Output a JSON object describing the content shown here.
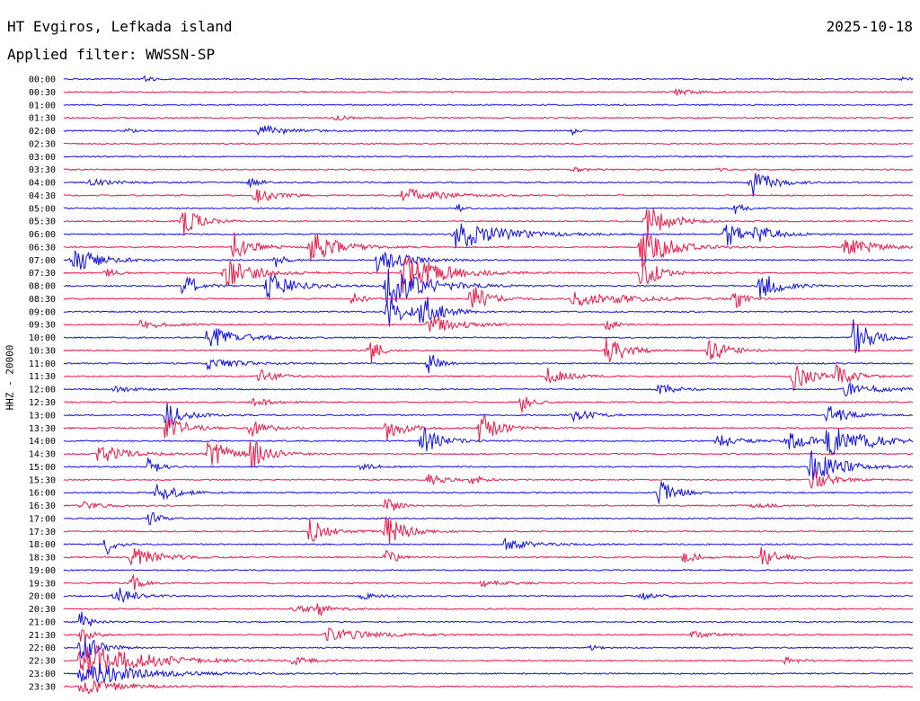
{
  "header": {
    "station": "HT Evgiros, Lefkada island",
    "date": "2025-10-18",
    "filter": "Applied filter: WWSSN-SP",
    "channel": "HHZ - 20000"
  },
  "chart_data": {
    "type": "line",
    "variant": "helicorder",
    "title": "HT Evgiros, Lefkada island",
    "subtitle": "Applied filter: WWSSN-SP",
    "ylabel": "HHZ - 20000",
    "date": "2025-10-18",
    "trace_colors": [
      "#1010e8",
      "#f01848"
    ],
    "grid": false,
    "rows": [
      {
        "label": "00:00",
        "events": [
          {
            "t": 0.095,
            "amp": 0.25,
            "dur": 0.01
          },
          {
            "t": 0.985,
            "amp": 0.2,
            "dur": 0.01
          }
        ]
      },
      {
        "label": "00:30",
        "events": [
          {
            "t": 0.72,
            "amp": 0.3,
            "dur": 0.025
          }
        ]
      },
      {
        "label": "01:00",
        "events": []
      },
      {
        "label": "01:30",
        "events": [
          {
            "t": 0.32,
            "amp": 0.25,
            "dur": 0.015
          }
        ]
      },
      {
        "label": "02:00",
        "events": [
          {
            "t": 0.075,
            "amp": 0.2,
            "dur": 0.01
          },
          {
            "t": 0.23,
            "amp": 0.55,
            "dur": 0.03
          },
          {
            "t": 0.6,
            "amp": 0.4,
            "dur": 0.005
          }
        ]
      },
      {
        "label": "02:30",
        "events": []
      },
      {
        "label": "03:00",
        "events": []
      },
      {
        "label": "03:30",
        "events": [
          {
            "t": 0.6,
            "amp": 0.2,
            "dur": 0.02
          },
          {
            "t": 0.77,
            "amp": 0.15,
            "dur": 0.01
          }
        ]
      },
      {
        "label": "04:00",
        "events": [
          {
            "t": 0.03,
            "amp": 0.3,
            "dur": 0.03
          },
          {
            "t": 0.22,
            "amp": 0.6,
            "dur": 0.01
          },
          {
            "t": 0.81,
            "amp": 1.6,
            "dur": 0.02
          }
        ]
      },
      {
        "label": "04:30",
        "events": [
          {
            "t": 0.225,
            "amp": 0.9,
            "dur": 0.02
          },
          {
            "t": 0.4,
            "amp": 0.7,
            "dur": 0.04
          }
        ]
      },
      {
        "label": "05:00",
        "events": [
          {
            "t": 0.465,
            "amp": 0.4,
            "dur": 0.005
          },
          {
            "t": 0.79,
            "amp": 0.6,
            "dur": 0.01
          }
        ]
      },
      {
        "label": "05:30",
        "events": [
          {
            "t": 0.14,
            "amp": 1.4,
            "dur": 0.02
          },
          {
            "t": 0.685,
            "amp": 1.8,
            "dur": 0.025
          }
        ]
      },
      {
        "label": "06:00",
        "events": [
          {
            "t": 0.46,
            "amp": 1.5,
            "dur": 0.05
          },
          {
            "t": 0.78,
            "amp": 1.2,
            "dur": 0.02
          },
          {
            "t": 0.815,
            "amp": 1.0,
            "dur": 0.02
          }
        ]
      },
      {
        "label": "06:30",
        "events": [
          {
            "t": 0.2,
            "amp": 1.4,
            "dur": 0.02
          },
          {
            "t": 0.29,
            "amp": 1.5,
            "dur": 0.03
          },
          {
            "t": 0.68,
            "amp": 2.0,
            "dur": 0.03
          },
          {
            "t": 0.92,
            "amp": 1.0,
            "dur": 0.03
          }
        ]
      },
      {
        "label": "07:00",
        "events": [
          {
            "t": 0.01,
            "amp": 1.2,
            "dur": 0.03
          },
          {
            "t": 0.37,
            "amp": 1.3,
            "dur": 0.03
          },
          {
            "t": 0.25,
            "amp": 0.6,
            "dur": 0.01
          }
        ]
      },
      {
        "label": "07:30",
        "events": [
          {
            "t": 0.05,
            "amp": 0.6,
            "dur": 0.01
          },
          {
            "t": 0.19,
            "amp": 1.6,
            "dur": 0.03
          },
          {
            "t": 0.4,
            "amp": 2.2,
            "dur": 0.04
          },
          {
            "t": 0.68,
            "amp": 1.5,
            "dur": 0.02
          }
        ]
      },
      {
        "label": "08:00",
        "events": [
          {
            "t": 0.14,
            "amp": 1.4,
            "dur": 0.015
          },
          {
            "t": 0.24,
            "amp": 1.2,
            "dur": 0.03
          },
          {
            "t": 0.38,
            "amp": 2.0,
            "dur": 0.04
          },
          {
            "t": 0.82,
            "amp": 1.6,
            "dur": 0.02
          }
        ]
      },
      {
        "label": "08:30",
        "events": [
          {
            "t": 0.34,
            "amp": 0.8,
            "dur": 0.01
          },
          {
            "t": 0.48,
            "amp": 1.4,
            "dur": 0.02
          },
          {
            "t": 0.6,
            "amp": 0.7,
            "dur": 0.06
          },
          {
            "t": 0.79,
            "amp": 1.2,
            "dur": 0.01
          }
        ]
      },
      {
        "label": "09:00",
        "events": [
          {
            "t": 0.38,
            "amp": 1.6,
            "dur": 0.02
          },
          {
            "t": 0.42,
            "amp": 1.8,
            "dur": 0.02
          }
        ]
      },
      {
        "label": "09:30",
        "events": [
          {
            "t": 0.09,
            "amp": 0.4,
            "dur": 0.03
          },
          {
            "t": 0.43,
            "amp": 1.0,
            "dur": 0.03
          },
          {
            "t": 0.64,
            "amp": 0.6,
            "dur": 0.01
          }
        ]
      },
      {
        "label": "10:00",
        "events": [
          {
            "t": 0.17,
            "amp": 1.2,
            "dur": 0.03
          },
          {
            "t": 0.93,
            "amp": 1.8,
            "dur": 0.02
          }
        ]
      },
      {
        "label": "10:30",
        "events": [
          {
            "t": 0.36,
            "amp": 1.6,
            "dur": 0.01
          },
          {
            "t": 0.64,
            "amp": 1.6,
            "dur": 0.02
          },
          {
            "t": 0.76,
            "amp": 1.3,
            "dur": 0.02
          }
        ]
      },
      {
        "label": "11:00",
        "events": [
          {
            "t": 0.17,
            "amp": 0.6,
            "dur": 0.03
          },
          {
            "t": 0.43,
            "amp": 1.2,
            "dur": 0.01
          }
        ]
      },
      {
        "label": "11:30",
        "events": [
          {
            "t": 0.23,
            "amp": 0.7,
            "dur": 0.02
          },
          {
            "t": 0.57,
            "amp": 0.9,
            "dur": 0.02
          },
          {
            "t": 0.86,
            "amp": 1.4,
            "dur": 0.02
          },
          {
            "t": 0.91,
            "amp": 0.9,
            "dur": 0.02
          }
        ]
      },
      {
        "label": "12:00",
        "events": [
          {
            "t": 0.06,
            "amp": 0.3,
            "dur": 0.02
          },
          {
            "t": 0.7,
            "amp": 0.6,
            "dur": 0.02
          },
          {
            "t": 0.92,
            "amp": 0.6,
            "dur": 0.04
          }
        ]
      },
      {
        "label": "12:30",
        "events": [
          {
            "t": 0.22,
            "amp": 0.5,
            "dur": 0.02
          },
          {
            "t": 0.54,
            "amp": 1.0,
            "dur": 0.01
          }
        ]
      },
      {
        "label": "13:00",
        "events": [
          {
            "t": 0.12,
            "amp": 1.3,
            "dur": 0.02
          },
          {
            "t": 0.6,
            "amp": 0.6,
            "dur": 0.02
          },
          {
            "t": 0.9,
            "amp": 1.0,
            "dur": 0.02
          }
        ]
      },
      {
        "label": "13:30",
        "events": [
          {
            "t": 0.12,
            "amp": 1.5,
            "dur": 0.02
          },
          {
            "t": 0.22,
            "amp": 0.8,
            "dur": 0.02
          },
          {
            "t": 0.38,
            "amp": 1.2,
            "dur": 0.02
          },
          {
            "t": 0.49,
            "amp": 1.7,
            "dur": 0.02
          }
        ]
      },
      {
        "label": "14:00",
        "events": [
          {
            "t": 0.42,
            "amp": 1.5,
            "dur": 0.02
          },
          {
            "t": 0.77,
            "amp": 0.8,
            "dur": 0.02
          },
          {
            "t": 0.85,
            "amp": 0.9,
            "dur": 0.03
          },
          {
            "t": 0.9,
            "amp": 1.8,
            "dur": 0.02
          },
          {
            "t": 0.94,
            "amp": 0.6,
            "dur": 0.03
          }
        ]
      },
      {
        "label": "14:30",
        "events": [
          {
            "t": 0.04,
            "amp": 0.9,
            "dur": 0.03
          },
          {
            "t": 0.17,
            "amp": 1.6,
            "dur": 0.02
          },
          {
            "t": 0.22,
            "amp": 1.4,
            "dur": 0.02
          }
        ]
      },
      {
        "label": "15:00",
        "events": [
          {
            "t": 0.1,
            "amp": 1.2,
            "dur": 0.01
          },
          {
            "t": 0.35,
            "amp": 0.3,
            "dur": 0.02
          },
          {
            "t": 0.88,
            "amp": 1.8,
            "dur": 0.03
          }
        ]
      },
      {
        "label": "15:30",
        "events": [
          {
            "t": 0.43,
            "amp": 0.5,
            "dur": 0.02
          },
          {
            "t": 0.48,
            "amp": 0.5,
            "dur": 0.01
          },
          {
            "t": 0.88,
            "amp": 1.2,
            "dur": 0.02
          }
        ]
      },
      {
        "label": "16:00",
        "events": [
          {
            "t": 0.11,
            "amp": 1.0,
            "dur": 0.02
          },
          {
            "t": 0.7,
            "amp": 1.2,
            "dur": 0.02
          }
        ]
      },
      {
        "label": "16:30",
        "events": [
          {
            "t": 0.02,
            "amp": 0.4,
            "dur": 0.02
          },
          {
            "t": 0.38,
            "amp": 1.0,
            "dur": 0.01
          },
          {
            "t": 0.81,
            "amp": 0.2,
            "dur": 0.03
          }
        ]
      },
      {
        "label": "17:00",
        "events": [
          {
            "t": 0.1,
            "amp": 1.0,
            "dur": 0.01
          }
        ]
      },
      {
        "label": "17:30",
        "events": [
          {
            "t": 0.29,
            "amp": 1.2,
            "dur": 0.02
          },
          {
            "t": 0.38,
            "amp": 1.5,
            "dur": 0.02
          }
        ]
      },
      {
        "label": "18:00",
        "events": [
          {
            "t": 0.05,
            "amp": 1.0,
            "dur": 0.01
          },
          {
            "t": 0.52,
            "amp": 0.5,
            "dur": 0.03
          }
        ]
      },
      {
        "label": "18:30",
        "events": [
          {
            "t": 0.08,
            "amp": 1.0,
            "dur": 0.03
          },
          {
            "t": 0.38,
            "amp": 1.0,
            "dur": 0.01
          },
          {
            "t": 0.73,
            "amp": 0.5,
            "dur": 0.02
          },
          {
            "t": 0.82,
            "amp": 1.0,
            "dur": 0.02
          }
        ]
      },
      {
        "label": "19:00",
        "events": []
      },
      {
        "label": "19:30",
        "events": [
          {
            "t": 0.08,
            "amp": 0.9,
            "dur": 0.01
          },
          {
            "t": 0.49,
            "amp": 0.3,
            "dur": 0.03
          }
        ]
      },
      {
        "label": "20:00",
        "events": [
          {
            "t": 0.06,
            "amp": 1.0,
            "dur": 0.02
          },
          {
            "t": 0.35,
            "amp": 0.3,
            "dur": 0.02
          },
          {
            "t": 0.68,
            "amp": 0.3,
            "dur": 0.02
          }
        ]
      },
      {
        "label": "20:30",
        "events": [
          {
            "t": 0.27,
            "amp": 0.3,
            "dur": 0.03
          },
          {
            "t": 0.3,
            "amp": 0.6,
            "dur": 0.01
          }
        ]
      },
      {
        "label": "21:00",
        "events": [
          {
            "t": 0.02,
            "amp": 1.2,
            "dur": 0.01
          }
        ]
      },
      {
        "label": "21:30",
        "events": [
          {
            "t": 0.02,
            "amp": 1.2,
            "dur": 0.01
          },
          {
            "t": 0.31,
            "amp": 0.6,
            "dur": 0.05
          },
          {
            "t": 0.74,
            "amp": 0.3,
            "dur": 0.03
          }
        ]
      },
      {
        "label": "22:00",
        "events": [
          {
            "t": 0.02,
            "amp": 1.5,
            "dur": 0.02
          },
          {
            "t": 0.62,
            "amp": 0.3,
            "dur": 0.01
          }
        ]
      },
      {
        "label": "22:30",
        "events": [
          {
            "t": 0.02,
            "amp": 2.0,
            "dur": 0.06
          },
          {
            "t": 0.27,
            "amp": 0.4,
            "dur": 0.02
          },
          {
            "t": 0.85,
            "amp": 0.3,
            "dur": 0.02
          }
        ]
      },
      {
        "label": "23:00",
        "events": [
          {
            "t": 0.02,
            "amp": 1.3,
            "dur": 0.06
          }
        ]
      },
      {
        "label": "23:30",
        "events": [
          {
            "t": 0.02,
            "amp": 0.8,
            "dur": 0.04
          }
        ]
      }
    ]
  }
}
